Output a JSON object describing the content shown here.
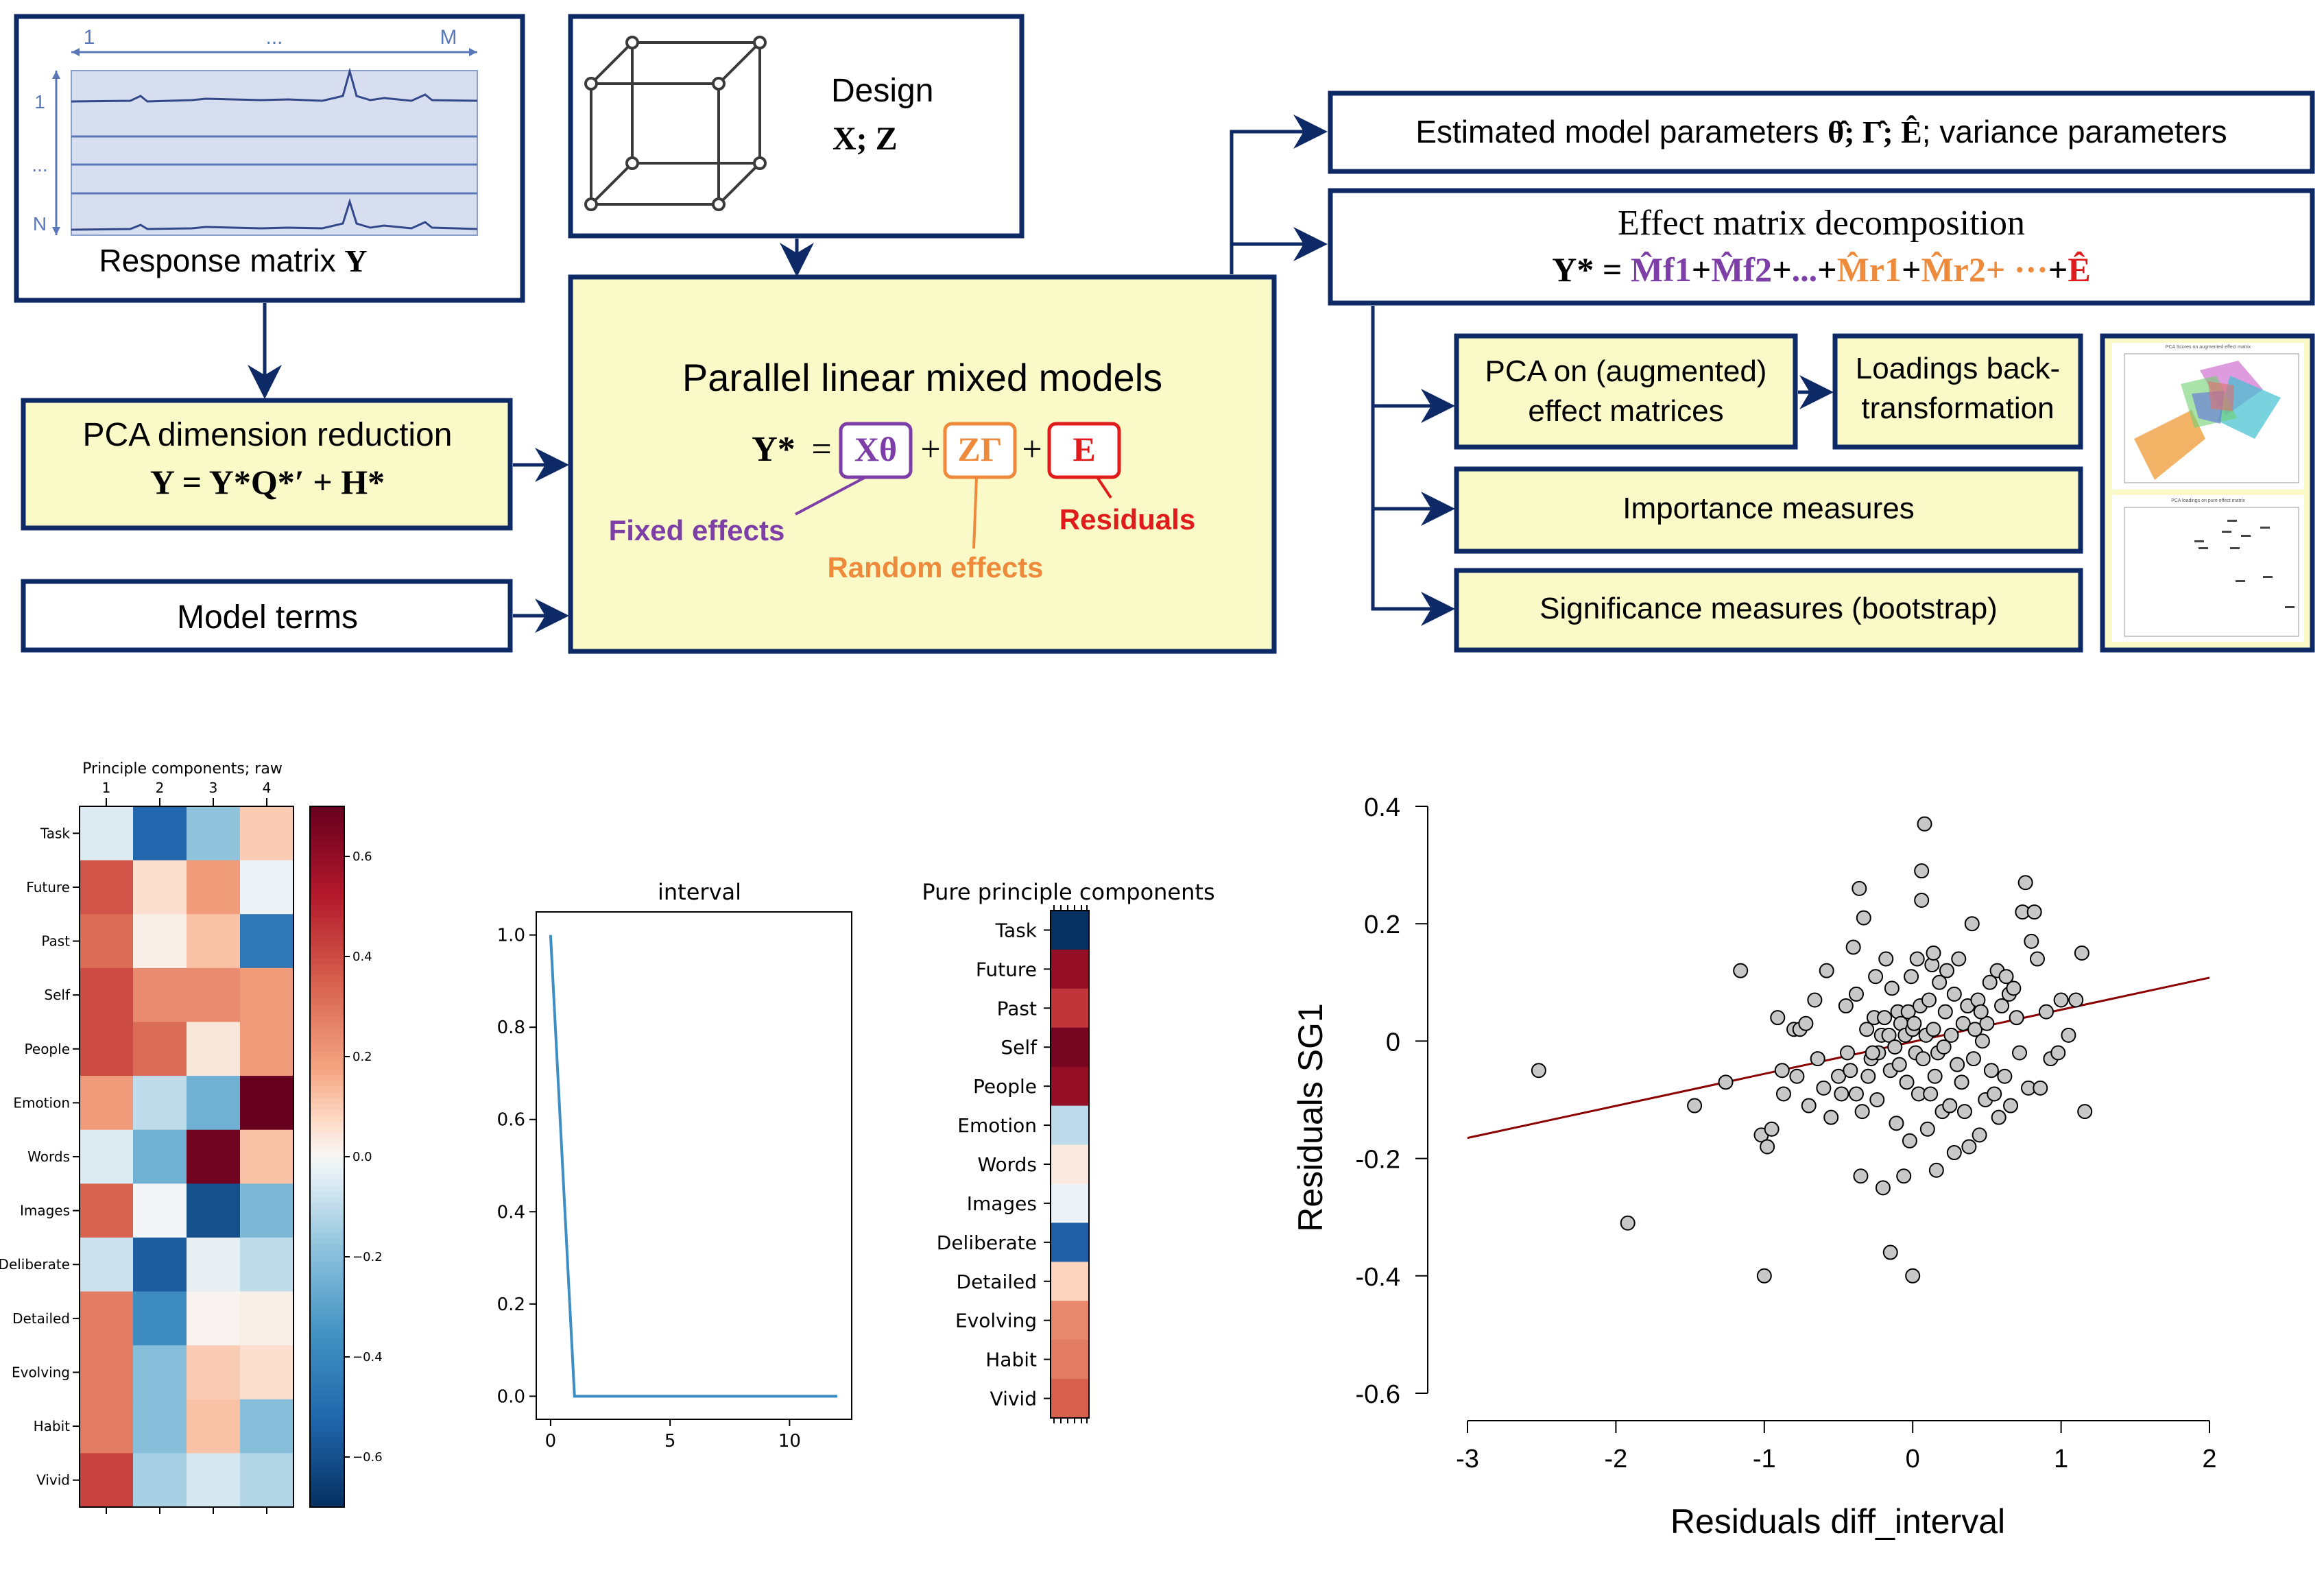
{
  "colors": {
    "navy": "#0d2a66",
    "box_fill": "#fafac8",
    "purple": "#7e3ea8",
    "orange": "#ee8a3c",
    "red": "#e01b1b",
    "line_blue": "#3e8ec4",
    "reg_line": "#8b0000",
    "point_fill": "#c8c8c8"
  },
  "diagram": {
    "response": {
      "col_first": "1",
      "col_dots": "...",
      "col_last": "M",
      "row_first": "1",
      "row_dots": "...",
      "row_last": "N",
      "label": "Response matrix",
      "label_math": "Y"
    },
    "design": {
      "label": "Design",
      "math": "X; Z",
      "icon": "cube-icon"
    },
    "pca_reduction": {
      "title": "PCA dimension reduction",
      "formula": "Y = Y*Q*′ + H*"
    },
    "model_terms": {
      "label": "Model terms"
    },
    "lmm": {
      "title": "Parallel linear mixed models",
      "lhs": "Y*",
      "eq": "=",
      "plus": "+",
      "term_fixed": "Xθ",
      "term_random": "ZΓ",
      "term_resid": "E",
      "label_fixed": "Fixed effects",
      "label_random": "Random effects",
      "label_resid": "Residuals"
    },
    "estimated": {
      "text_a": "Estimated model parameters",
      "math": "θ̂; Γ̂; Ê",
      "text_b": "; variance parameters"
    },
    "effect_decomp": {
      "title": "Effect matrix decomposition",
      "lhs": "Y*",
      "eq": "=",
      "terms": [
        {
          "text": "M̂f1",
          "color": "#7e3ea8"
        },
        {
          "text": "+",
          "color": "#000000"
        },
        {
          "text": "M̂f2",
          "color": "#7e3ea8"
        },
        {
          "text": "+",
          "color": "#000000"
        },
        {
          "text": "...",
          "color": "#7e3ea8"
        },
        {
          "text": "+",
          "color": "#000000"
        },
        {
          "text": "M̂r1",
          "color": "#ee8a3c"
        },
        {
          "text": "+",
          "color": "#000000"
        },
        {
          "text": "M̂r2",
          "color": "#ee8a3c"
        },
        {
          "text": "+ ···",
          "color": "#ee8a3c"
        },
        {
          "text": "+",
          "color": "#000000"
        },
        {
          "text": "Ê",
          "color": "#e01b1b"
        }
      ]
    },
    "pca_augmented": {
      "line1": "PCA on (augmented)",
      "line2": "effect matrices"
    },
    "loadings": {
      "line1": "Loadings back-",
      "line2": "transformation"
    },
    "importance": {
      "label": "Importance measures"
    },
    "significance": {
      "label": "Significance measures (bootstrap)"
    },
    "thumb": {
      "top_title": "PCA Scores on augmented effect matrix",
      "bottom_title": "PCA loadings on pure effect matrix"
    }
  },
  "heatmap_raw": {
    "title": "Principle components; raw",
    "cols": [
      "1",
      "2",
      "3",
      "4"
    ],
    "rows": [
      "Task",
      "Future",
      "Past",
      "Self",
      "People",
      "Emotion",
      "Words",
      "Images",
      "Deliberate",
      "Detailed",
      "Evolving",
      "Habit",
      "Vivid"
    ],
    "values": [
      [
        -0.05,
        -0.52,
        -0.18,
        0.1
      ],
      [
        0.38,
        0.06,
        0.2,
        -0.02
      ],
      [
        0.32,
        0.02,
        0.12,
        -0.45
      ],
      [
        0.4,
        0.24,
        0.24,
        0.2
      ],
      [
        0.4,
        0.32,
        0.04,
        0.2
      ],
      [
        0.2,
        -0.1,
        -0.25,
        0.7
      ],
      [
        -0.05,
        -0.25,
        0.68,
        0.12
      ],
      [
        0.34,
        -0.01,
        -0.6,
        -0.22
      ],
      [
        -0.08,
        -0.55,
        -0.03,
        -0.1
      ],
      [
        0.28,
        -0.38,
        0.01,
        0.02
      ],
      [
        0.28,
        -0.2,
        0.1,
        0.06
      ],
      [
        0.28,
        -0.2,
        0.12,
        -0.2
      ],
      [
        0.42,
        -0.14,
        -0.06,
        -0.12
      ]
    ],
    "colorbar": {
      "ticks": [
        "0.6",
        "0.4",
        "0.2",
        "0.0",
        "−0.2",
        "−0.4",
        "−0.6"
      ],
      "tick_values": [
        0.6,
        0.4,
        0.2,
        0.0,
        -0.2,
        -0.4,
        -0.6
      ],
      "range": [
        -0.7,
        0.7
      ]
    }
  },
  "chart_data": [
    {
      "type": "line",
      "title": "interval",
      "x": [
        0,
        1,
        2,
        3,
        4,
        5,
        6,
        7,
        8,
        9,
        10,
        11,
        12
      ],
      "y": [
        1.0,
        0.0,
        0.0,
        0.0,
        0.0,
        0.0,
        0.0,
        0.0,
        0.0,
        0.0,
        0.0,
        0.0,
        0.0
      ],
      "xlim": [
        -0.6,
        12.6
      ],
      "ylim": [
        -0.05,
        1.05
      ],
      "x_ticks": [
        "0",
        "5",
        "10"
      ],
      "x_tick_values": [
        0,
        5,
        10
      ],
      "y_ticks": [
        "0.0",
        "0.2",
        "0.4",
        "0.6",
        "0.8",
        "1.0"
      ],
      "y_tick_values": [
        0.0,
        0.2,
        0.4,
        0.6,
        0.8,
        1.0
      ]
    },
    {
      "type": "heatmap",
      "title": "Pure principle components",
      "rows": [
        "Task",
        "Future",
        "Past",
        "Self",
        "People",
        "Emotion",
        "Words",
        "Images",
        "Deliberate",
        "Detailed",
        "Evolving",
        "Habit",
        "Vivid"
      ],
      "values": [
        -1.0,
        0.85,
        0.65,
        0.95,
        0.85,
        -0.15,
        0.05,
        -0.03,
        -0.78,
        0.12,
        0.35,
        0.4,
        0.5
      ]
    },
    {
      "type": "scatter",
      "xlabel": "Residuals diff_interval",
      "ylabel": "Residuals SG1",
      "xlim": [
        -3,
        2
      ],
      "ylim": [
        -0.6,
        0.4
      ],
      "x_ticks": [
        "-3",
        "-2",
        "-1",
        "0",
        "1",
        "2"
      ],
      "x_tick_values": [
        -3,
        -2,
        -1,
        0,
        1,
        2
      ],
      "y_ticks": [
        "0.4",
        "0.2",
        "0",
        "-0.2",
        "-0.4",
        "-0.6"
      ],
      "y_tick_values": [
        0.4,
        0.2,
        0,
        -0.2,
        -0.4,
        -0.6
      ],
      "fit_line": {
        "x": [
          -3,
          2
        ],
        "y": [
          -0.165,
          0.108
        ]
      },
      "points": [
        [
          -2.52,
          -0.05
        ],
        [
          -1.92,
          -0.31
        ],
        [
          -1.47,
          -0.11
        ],
        [
          -1.26,
          -0.07
        ],
        [
          -1.16,
          0.12
        ],
        [
          -1.02,
          -0.16
        ],
        [
          -1.0,
          -0.4
        ],
        [
          -0.98,
          -0.18
        ],
        [
          -0.95,
          -0.15
        ],
        [
          -0.91,
          0.04
        ],
        [
          -0.87,
          -0.09
        ],
        [
          -0.8,
          0.02
        ],
        [
          -0.78,
          -0.06
        ],
        [
          -0.76,
          0.02
        ],
        [
          -0.72,
          0.03
        ],
        [
          -0.7,
          -0.11
        ],
        [
          -0.64,
          -0.03
        ],
        [
          -0.6,
          -0.08
        ],
        [
          -0.55,
          -0.13
        ],
        [
          -0.5,
          -0.06
        ],
        [
          -0.48,
          -0.09
        ],
        [
          -0.45,
          0.06
        ],
        [
          -0.44,
          -0.02
        ],
        [
          -0.42,
          -0.05
        ],
        [
          -0.4,
          0.16
        ],
        [
          -0.38,
          0.08
        ],
        [
          -0.38,
          -0.09
        ],
        [
          -0.36,
          0.26
        ],
        [
          -0.34,
          -0.12
        ],
        [
          -0.33,
          0.21
        ],
        [
          -0.31,
          0.02
        ],
        [
          -0.3,
          -0.06
        ],
        [
          -0.28,
          -0.03
        ],
        [
          -0.26,
          0.04
        ],
        [
          -0.25,
          0.11
        ],
        [
          -0.24,
          -0.1
        ],
        [
          -0.23,
          -0.02
        ],
        [
          -0.21,
          0.01
        ],
        [
          -0.2,
          -0.25
        ],
        [
          -0.19,
          0.04
        ],
        [
          -0.18,
          0.14
        ],
        [
          -0.16,
          0.01
        ],
        [
          -0.15,
          -0.05
        ],
        [
          -0.14,
          0.09
        ],
        [
          -0.12,
          -0.01
        ],
        [
          -0.11,
          -0.14
        ],
        [
          -0.1,
          0.05
        ],
        [
          -0.09,
          -0.04
        ],
        [
          -0.08,
          0.03
        ],
        [
          -0.06,
          -0.23
        ],
        [
          -0.05,
          0.01
        ],
        [
          -0.04,
          -0.07
        ],
        [
          -0.03,
          0.05
        ],
        [
          -0.02,
          -0.17
        ],
        [
          -0.01,
          0.11
        ],
        [
          0.0,
          0.02
        ],
        [
          0.0,
          -0.4
        ],
        [
          0.01,
          0.03
        ],
        [
          0.02,
          -0.02
        ],
        [
          0.03,
          0.14
        ],
        [
          0.04,
          -0.09
        ],
        [
          0.05,
          0.06
        ],
        [
          0.06,
          0.24
        ],
        [
          0.06,
          0.29
        ],
        [
          0.07,
          -0.03
        ],
        [
          0.08,
          0.37
        ],
        [
          0.09,
          0.01
        ],
        [
          0.1,
          -0.15
        ],
        [
          0.11,
          0.07
        ],
        [
          0.12,
          -0.09
        ],
        [
          0.13,
          0.13
        ],
        [
          0.14,
          0.02
        ],
        [
          0.15,
          -0.06
        ],
        [
          0.16,
          -0.22
        ],
        [
          0.17,
          -0.02
        ],
        [
          0.18,
          0.1
        ],
        [
          0.2,
          -0.12
        ],
        [
          0.21,
          -0.01
        ],
        [
          0.22,
          0.05
        ],
        [
          0.23,
          0.12
        ],
        [
          0.25,
          -0.11
        ],
        [
          0.26,
          0.01
        ],
        [
          0.28,
          0.08
        ],
        [
          0.3,
          -0.04
        ],
        [
          0.31,
          0.14
        ],
        [
          0.33,
          -0.07
        ],
        [
          0.34,
          0.03
        ],
        [
          0.35,
          -0.12
        ],
        [
          0.37,
          0.06
        ],
        [
          0.38,
          -0.18
        ],
        [
          0.4,
          0.2
        ],
        [
          0.41,
          -0.03
        ],
        [
          0.42,
          0.02
        ],
        [
          0.44,
          0.07
        ],
        [
          0.45,
          -0.16
        ],
        [
          0.47,
          0.0
        ],
        [
          0.49,
          -0.1
        ],
        [
          0.5,
          0.03
        ],
        [
          0.52,
          0.1
        ],
        [
          0.53,
          -0.05
        ],
        [
          0.55,
          -0.09
        ],
        [
          0.57,
          0.12
        ],
        [
          0.58,
          -0.13
        ],
        [
          0.6,
          0.06
        ],
        [
          0.62,
          -0.06
        ],
        [
          0.63,
          0.11
        ],
        [
          0.65,
          0.08
        ],
        [
          0.66,
          -0.11
        ],
        [
          0.68,
          0.09
        ],
        [
          0.7,
          0.04
        ],
        [
          0.72,
          -0.02
        ],
        [
          0.74,
          0.22
        ],
        [
          0.76,
          0.27
        ],
        [
          0.78,
          -0.08
        ],
        [
          0.8,
          0.17
        ],
        [
          0.82,
          0.22
        ],
        [
          0.84,
          0.14
        ],
        [
          0.86,
          -0.08
        ],
        [
          0.9,
          0.05
        ],
        [
          0.93,
          -0.03
        ],
        [
          0.98,
          -0.02
        ],
        [
          1.0,
          0.07
        ],
        [
          1.05,
          0.01
        ],
        [
          1.1,
          0.07
        ],
        [
          1.14,
          0.15
        ],
        [
          1.16,
          -0.12
        ],
        [
          -0.58,
          0.12
        ],
        [
          -0.66,
          0.07
        ],
        [
          0.28,
          -0.19
        ],
        [
          -0.35,
          -0.23
        ],
        [
          -0.15,
          -0.36
        ],
        [
          -0.88,
          -0.05
        ],
        [
          0.14,
          0.15
        ],
        [
          0.46,
          0.05
        ],
        [
          -0.27,
          -0.02
        ]
      ]
    }
  ]
}
